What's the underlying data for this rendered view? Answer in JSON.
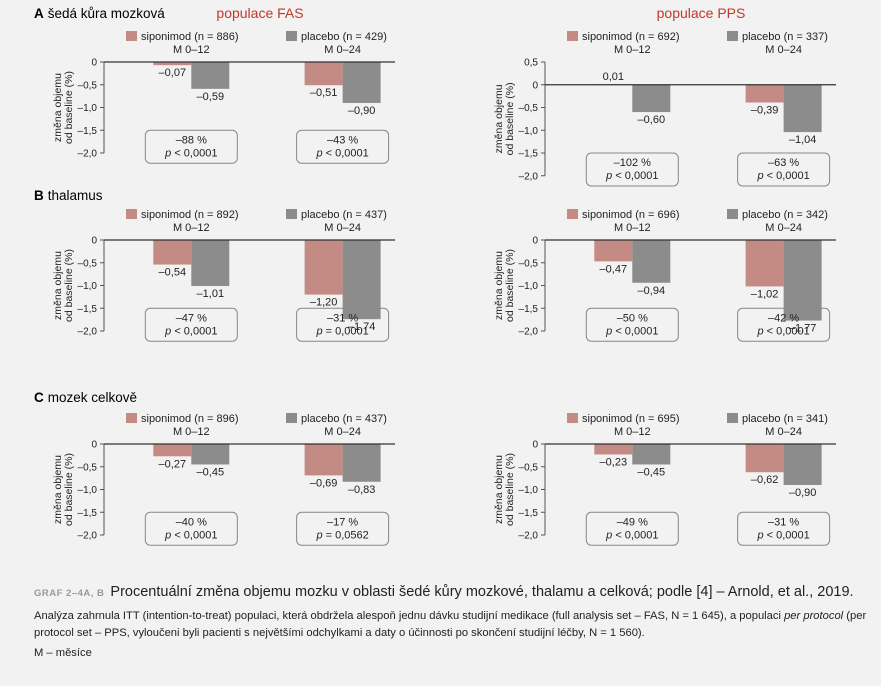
{
  "headers": {
    "fas": "populace FAS",
    "pps": "populace PPS"
  },
  "sections": [
    {
      "letter": "A",
      "title": "šedá kůra mozková"
    },
    {
      "letter": "B",
      "title": "thalamus"
    },
    {
      "letter": "C",
      "title": "mozek celkově"
    }
  ],
  "ylabel_line1": "změna objemu",
  "ylabel_line2": "od baseline (%)",
  "colors": {
    "siponimod": "#c48a84",
    "placebo": "#8c8c8c",
    "header": "#c0392b",
    "stat_border": "#888888"
  },
  "chart_data": [
    {
      "type": "bar",
      "section": "A",
      "population": "FAS",
      "categories": [
        "M 0–12",
        "M 0–24"
      ],
      "series": [
        {
          "name": "siponimod (n = 886)",
          "values": [
            -0.07,
            -0.51
          ],
          "labels": [
            "–0,07",
            "–0,51"
          ]
        },
        {
          "name": "placebo (n = 429)",
          "values": [
            -0.59,
            -0.9
          ],
          "labels": [
            "–0,59",
            "–0,90"
          ]
        }
      ],
      "yticks": [
        0,
        -0.5,
        -1.0,
        -1.5,
        -2.0
      ],
      "ytick_labels": [
        "0",
        "–0,5",
        "–1,0",
        "–1,5",
        "–2,0"
      ],
      "ylim": [
        -2.0,
        0
      ],
      "stats": [
        {
          "pct": "–88 %",
          "p_prefix": "p",
          "p_rest": " < 0,0001"
        },
        {
          "pct": "–43 %",
          "p_prefix": "p",
          "p_rest": " < 0,0001"
        }
      ]
    },
    {
      "type": "bar",
      "section": "A",
      "population": "PPS",
      "categories": [
        "M 0–12",
        "M 0–24"
      ],
      "series": [
        {
          "name": "siponimod (n = 692)",
          "values": [
            0.01,
            -0.39
          ],
          "labels": [
            "0,01",
            "–0,39"
          ]
        },
        {
          "name": "placebo (n = 337)",
          "values": [
            -0.6,
            -1.04
          ],
          "labels": [
            "–0,60",
            "–1,04"
          ]
        }
      ],
      "yticks": [
        0.5,
        0,
        -0.5,
        -1.0,
        -1.5,
        -2.0
      ],
      "ytick_labels": [
        "0,5",
        "0",
        "–0,5",
        "–1,0",
        "–1,5",
        "–2,0"
      ],
      "ylim": [
        -2.0,
        0.5
      ],
      "stats": [
        {
          "pct": "–102 %",
          "p_prefix": "p",
          "p_rest": " < 0,0001"
        },
        {
          "pct": "–63 %",
          "p_prefix": "p",
          "p_rest": " < 0,0001"
        }
      ]
    },
    {
      "type": "bar",
      "section": "B",
      "population": "FAS",
      "categories": [
        "M 0–12",
        "M 0–24"
      ],
      "series": [
        {
          "name": "siponimod (n = 892)",
          "values": [
            -0.54,
            -1.2
          ],
          "labels": [
            "–0,54",
            "–1,20"
          ]
        },
        {
          "name": "placebo (n = 437)",
          "values": [
            -1.01,
            -1.74
          ],
          "labels": [
            "–1,01",
            "–1,74"
          ]
        }
      ],
      "yticks": [
        0,
        -0.5,
        -1.0,
        -1.5,
        -2.0
      ],
      "ytick_labels": [
        "0",
        "–0,5",
        "–1,0",
        "–1,5",
        "–2,0"
      ],
      "ylim": [
        -2.0,
        0
      ],
      "stats": [
        {
          "pct": "–47 %",
          "p_prefix": "p",
          "p_rest": " < 0,0001"
        },
        {
          "pct": "–31 %",
          "p_prefix": "p",
          "p_rest": " = 0,0001"
        }
      ]
    },
    {
      "type": "bar",
      "section": "B",
      "population": "PPS",
      "categories": [
        "M 0–12",
        "M 0–24"
      ],
      "series": [
        {
          "name": "siponimod (n = 696)",
          "values": [
            -0.47,
            -1.02
          ],
          "labels": [
            "–0,47",
            "–1,02"
          ]
        },
        {
          "name": "placebo (n = 342)",
          "values": [
            -0.94,
            -1.77
          ],
          "labels": [
            "–0,94",
            "–1,77"
          ]
        }
      ],
      "yticks": [
        0,
        -0.5,
        -1.0,
        -1.5,
        -2.0
      ],
      "ytick_labels": [
        "0",
        "–0,5",
        "–1,0",
        "–1,5",
        "–2,0"
      ],
      "ylim": [
        -2.0,
        0
      ],
      "stats": [
        {
          "pct": "–50 %",
          "p_prefix": "p",
          "p_rest": " < 0,0001"
        },
        {
          "pct": "–42 %",
          "p_prefix": "p",
          "p_rest": " < 0,0001"
        }
      ]
    },
    {
      "type": "bar",
      "section": "C",
      "population": "FAS",
      "categories": [
        "M 0–12",
        "M 0–24"
      ],
      "series": [
        {
          "name": "siponimod (n = 896)",
          "values": [
            -0.27,
            -0.69
          ],
          "labels": [
            "–0,27",
            "–0,69"
          ]
        },
        {
          "name": "placebo (n = 437)",
          "values": [
            -0.45,
            -0.83
          ],
          "labels": [
            "–0,45",
            "–0,83"
          ]
        }
      ],
      "yticks": [
        0,
        -0.5,
        -1.0,
        -1.5,
        -2.0
      ],
      "ytick_labels": [
        "0",
        "–0,5",
        "–1,0",
        "–1,5",
        "–2,0"
      ],
      "ylim": [
        -2.0,
        0
      ],
      "stats": [
        {
          "pct": "–40 %",
          "p_prefix": "p",
          "p_rest": " < 0,0001"
        },
        {
          "pct": "–17 %",
          "p_prefix": "p",
          "p_rest": " = 0,0562"
        }
      ]
    },
    {
      "type": "bar",
      "section": "C",
      "population": "PPS",
      "categories": [
        "M 0–12",
        "M 0–24"
      ],
      "series": [
        {
          "name": "siponimod (n = 695)",
          "values": [
            -0.23,
            -0.62
          ],
          "labels": [
            "–0,23",
            "–0,62"
          ]
        },
        {
          "name": "placebo (n = 341)",
          "values": [
            -0.45,
            -0.9
          ],
          "labels": [
            "–0,45",
            "–0,90"
          ]
        }
      ],
      "yticks": [
        0,
        -0.5,
        -1.0,
        -1.5,
        -2.0
      ],
      "ytick_labels": [
        "0",
        "–0,5",
        "–1,0",
        "–1,5",
        "–2,0"
      ],
      "ylim": [
        -2.0,
        0
      ],
      "stats": [
        {
          "pct": "–49 %",
          "p_prefix": "p",
          "p_rest": " < 0,0001"
        },
        {
          "pct": "–31 %",
          "p_prefix": "p",
          "p_rest": " < 0,0001"
        }
      ]
    }
  ],
  "caption": {
    "label": "GRAF 2–4A, B",
    "title": "Procentuální změna objemu mozku v oblasti šedé kůry mozkové, thalamu a celková; podle [4] – Arnold, et al., 2019.",
    "text_part1": "Analýza zahrnula ITT (intention-to-treat) populaci, která obdržela alespoň jednu dávku studijní medikace (full analysis set – FAS, N = 1 645), a populaci ",
    "text_italic": "per protocol",
    "text_part2": " (per protocol set – PPS, vyloučeni byli pacienti s největšími odchylkami a daty o účinnosti po skončení studijní léčby, N = 1 560).",
    "note": "M – měsíce"
  }
}
